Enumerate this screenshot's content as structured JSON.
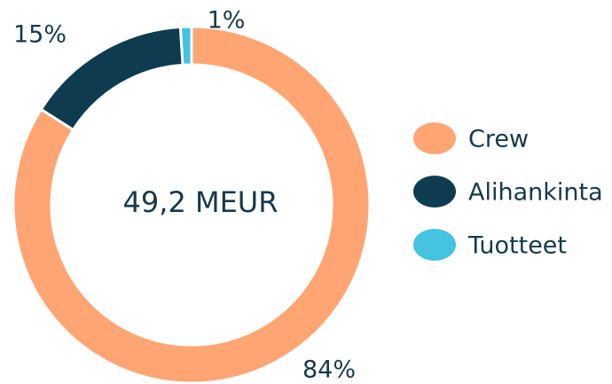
{
  "chart_data": {
    "type": "donut",
    "center_label": "49,2 MEUR",
    "categories": [
      "Crew",
      "Alihankinta",
      "Tuotteet"
    ],
    "values": [
      84,
      15,
      1
    ],
    "value_labels": [
      "84%",
      "15%",
      "1%"
    ],
    "colors": [
      "#ffa574",
      "#0e3b4f",
      "#45c3e0"
    ],
    "legend": "right"
  }
}
